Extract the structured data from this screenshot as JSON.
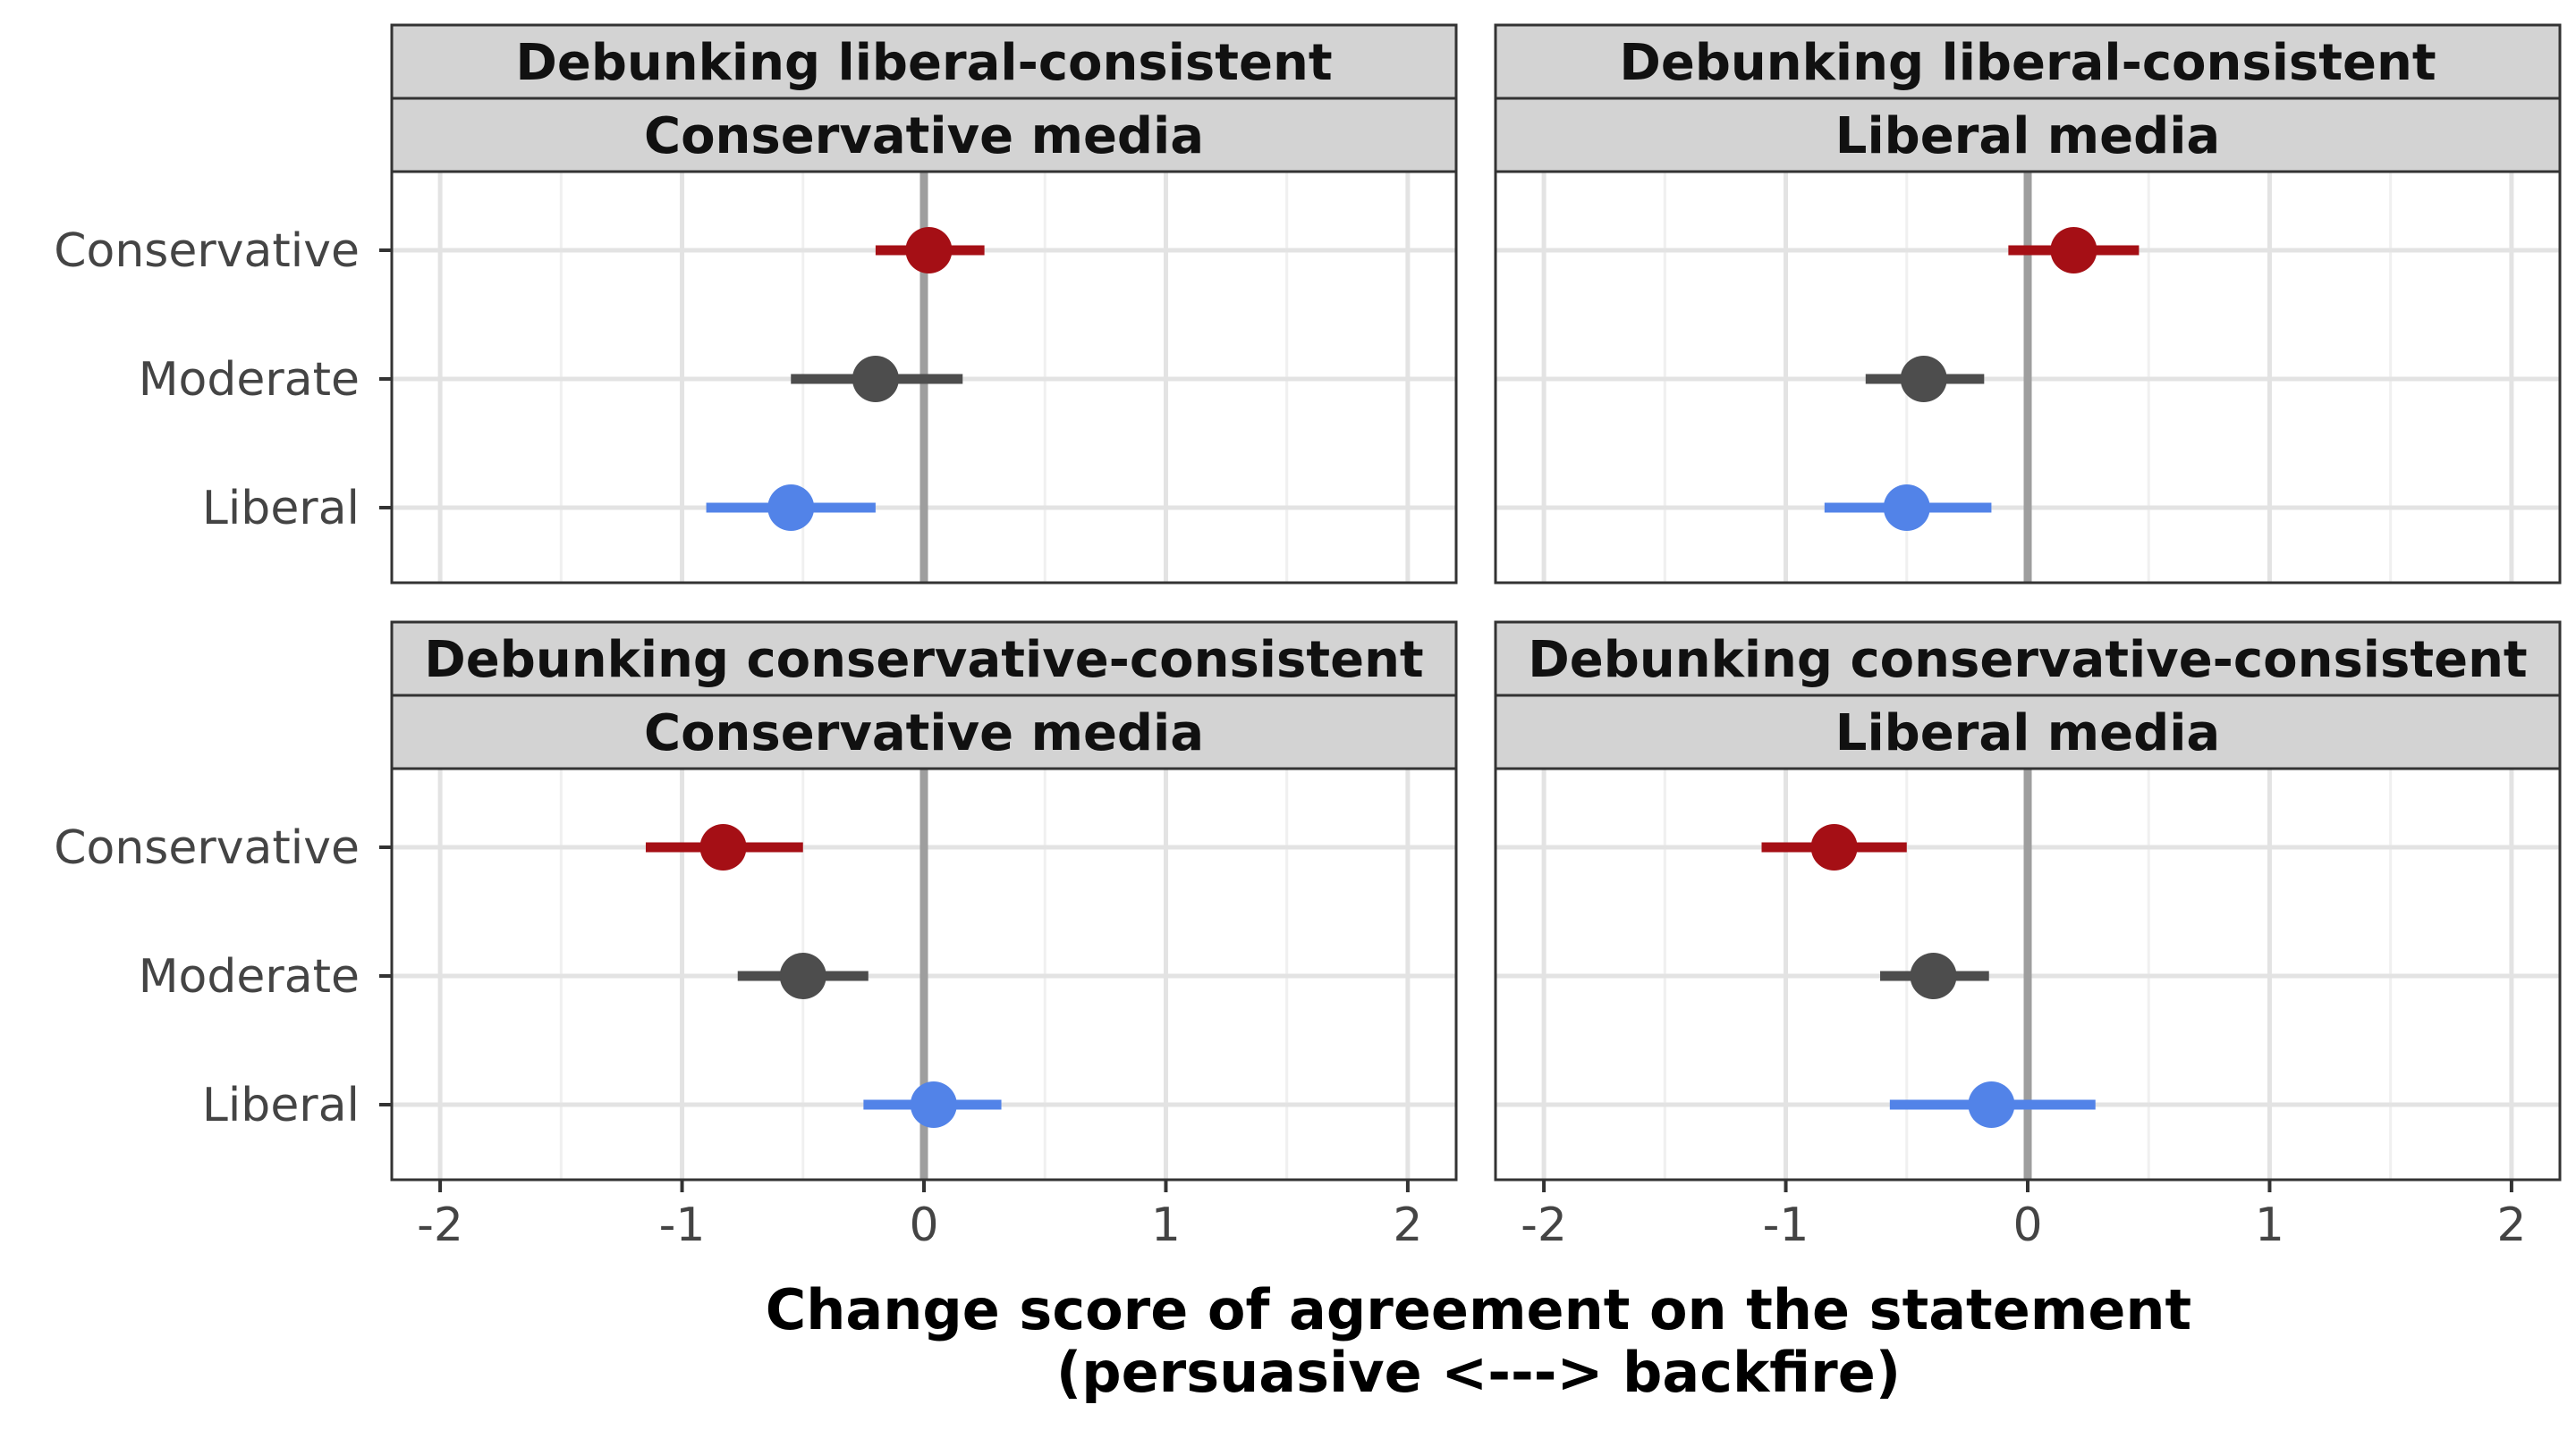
{
  "chart_data": {
    "type": "scatter",
    "x_axis": {
      "title_line1": "Change score of agreement on the statement",
      "title_line2": "(persuasive <---> backfire)",
      "ticks": [
        -2,
        -1,
        0,
        1,
        2
      ],
      "xlim": [
        -2.2,
        2.2
      ]
    },
    "y_axis": {
      "categories": [
        "Conservative",
        "Moderate",
        "Liberal"
      ]
    },
    "colors": {
      "Conservative": "#a50f15",
      "Moderate": "#4d4d4d",
      "Liberal": "#5283e8",
      "zero_line": "#9e9e9e",
      "grid": "#e3e3e3",
      "strip_fill": "#d3d3d3",
      "border": "#333333"
    },
    "grid": true,
    "panels": [
      {
        "row_label": "Debunking liberal-consistent",
        "col_label": "Conservative media",
        "points": [
          {
            "group": "Conservative",
            "estimate": 0.02,
            "low": -0.2,
            "high": 0.25
          },
          {
            "group": "Moderate",
            "estimate": -0.2,
            "low": -0.55,
            "high": 0.16
          },
          {
            "group": "Liberal",
            "estimate": -0.55,
            "low": -0.9,
            "high": -0.2
          }
        ]
      },
      {
        "row_label": "Debunking liberal-consistent",
        "col_label": "Liberal media",
        "points": [
          {
            "group": "Conservative",
            "estimate": 0.19,
            "low": -0.08,
            "high": 0.46
          },
          {
            "group": "Moderate",
            "estimate": -0.43,
            "low": -0.67,
            "high": -0.18
          },
          {
            "group": "Liberal",
            "estimate": -0.5,
            "low": -0.84,
            "high": -0.15
          }
        ]
      },
      {
        "row_label": "Debunking conservative-consistent",
        "col_label": "Conservative media",
        "points": [
          {
            "group": "Conservative",
            "estimate": -0.83,
            "low": -1.15,
            "high": -0.5
          },
          {
            "group": "Moderate",
            "estimate": -0.5,
            "low": -0.77,
            "high": -0.23
          },
          {
            "group": "Liberal",
            "estimate": 0.04,
            "low": -0.25,
            "high": 0.32
          }
        ]
      },
      {
        "row_label": "Debunking conservative-consistent",
        "col_label": "Liberal media",
        "points": [
          {
            "group": "Conservative",
            "estimate": -0.8,
            "low": -1.1,
            "high": -0.5
          },
          {
            "group": "Moderate",
            "estimate": -0.39,
            "low": -0.61,
            "high": -0.16
          },
          {
            "group": "Liberal",
            "estimate": -0.15,
            "low": -0.57,
            "high": 0.28
          }
        ]
      }
    ]
  }
}
